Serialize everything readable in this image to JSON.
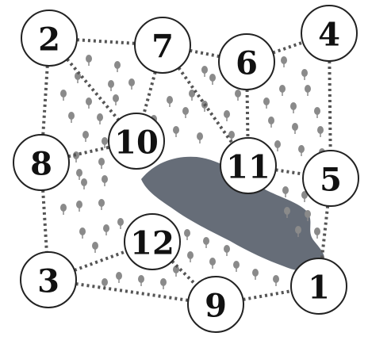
{
  "diagram": {
    "nodes": [
      {
        "id": "2",
        "label": "2"
      },
      {
        "id": "7",
        "label": "7"
      },
      {
        "id": "6",
        "label": "6"
      },
      {
        "id": "4",
        "label": "4"
      },
      {
        "id": "8",
        "label": "8"
      },
      {
        "id": "10",
        "label": "10"
      },
      {
        "id": "11",
        "label": "11"
      },
      {
        "id": "5",
        "label": "5"
      },
      {
        "id": "12",
        "label": "12"
      },
      {
        "id": "3",
        "label": "3"
      },
      {
        "id": "9",
        "label": "9"
      },
      {
        "id": "1",
        "label": "1"
      }
    ],
    "edges": [
      [
        "2",
        "7"
      ],
      [
        "7",
        "6"
      ],
      [
        "6",
        "4"
      ],
      [
        "2",
        "8"
      ],
      [
        "2",
        "10"
      ],
      [
        "7",
        "10"
      ],
      [
        "7",
        "11"
      ],
      [
        "6",
        "11"
      ],
      [
        "4",
        "5"
      ],
      [
        "8",
        "10"
      ],
      [
        "8",
        "3"
      ],
      [
        "11",
        "5"
      ],
      [
        "5",
        "1"
      ],
      [
        "3",
        "12"
      ],
      [
        "12",
        "9"
      ],
      [
        "3",
        "9"
      ],
      [
        "9",
        "1"
      ]
    ],
    "lake_color": "#666d78",
    "tree_color": "#8a8a8a",
    "path_style": "dotted"
  }
}
